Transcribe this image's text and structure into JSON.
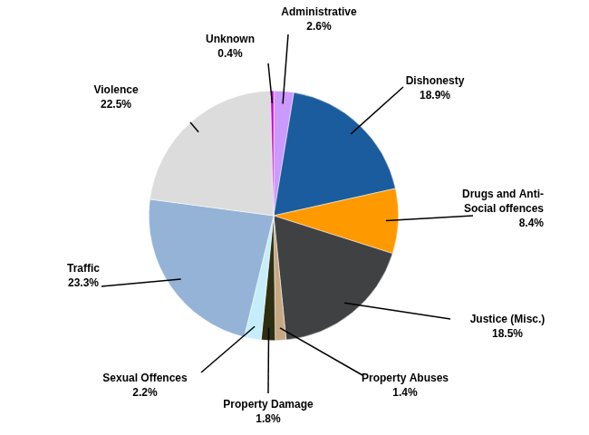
{
  "chart_data": {
    "type": "pie",
    "categories": [
      "Administrative",
      "Dishonesty",
      "Drugs and Anti-Social offences",
      "Justice (Misc.)",
      "Property Abuses",
      "Property Damage",
      "Sexual Offences",
      "Traffic",
      "Violence",
      "Unknown"
    ],
    "values": [
      2.6,
      18.9,
      8.4,
      18.5,
      1.4,
      1.8,
      2.2,
      23.3,
      22.5,
      0.4
    ],
    "value_labels": [
      "2.6%",
      "18.9%",
      "8.4%",
      "18.5%",
      "1.4%",
      "1.8%",
      "2.2%",
      "23.3%",
      "22.5%",
      "0.4%"
    ],
    "colors": [
      "#cc99ff",
      "#1a5c9e",
      "#ff9900",
      "#3f4142",
      "#c8a882",
      "#2e2e12",
      "#c6eefa",
      "#95b3d7",
      "#dcdcdc",
      "#cc00cc"
    ],
    "data_labels": true,
    "legend": false
  }
}
